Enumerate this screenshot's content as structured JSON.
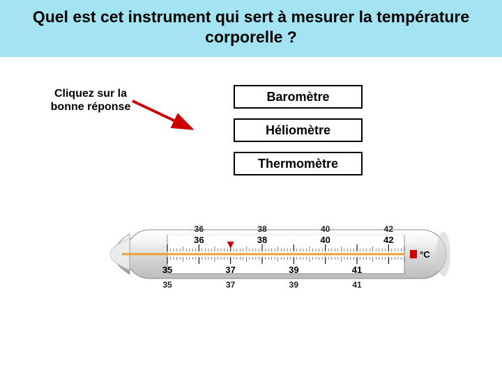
{
  "question": "Quel est cet instrument qui sert à mesurer la température corporelle ?",
  "hint": "Cliquez sur la bonne réponse",
  "answers": [
    "Baromètre",
    "Héliomètre",
    "Thermomètre"
  ],
  "colors": {
    "banner_bg": "#a3e3f2",
    "button_border": "#000000",
    "button_bg": "#ffffff",
    "arrow": "#cc0000",
    "mercury": "#e8a030",
    "thermo_body": "#e8e8e8",
    "thermo_scale_bg": "#ffffff",
    "unit_marker": "#d00000"
  },
  "thermometer": {
    "unit_label": "°C",
    "top_major_ticks": [
      36,
      38,
      40,
      42
    ],
    "mid_top_ticks": [
      36,
      38,
      40,
      42
    ],
    "mid_bottom_ticks": [
      35,
      37,
      39,
      41
    ],
    "bottom_major_ticks": [
      35,
      37,
      39,
      41
    ],
    "red_arrow_at": 37,
    "scale_min": 35,
    "scale_max": 42.5,
    "mercury_fill_to": 42.5
  }
}
